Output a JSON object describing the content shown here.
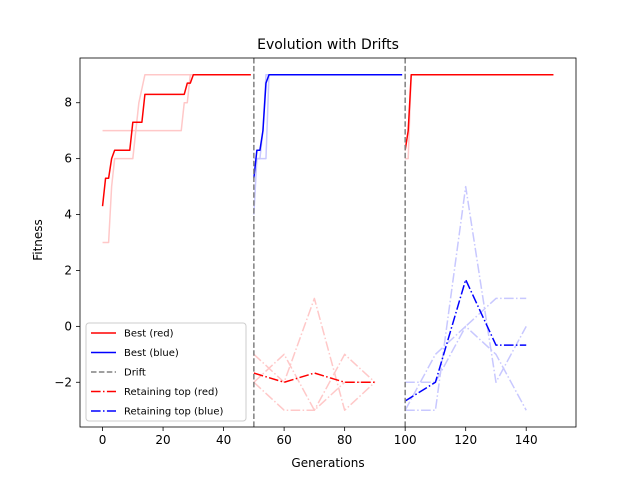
{
  "chart_data": {
    "type": "line",
    "title": "Evolution with Drifts",
    "xlabel": "Generations",
    "ylabel": "Fitness",
    "xlim": [
      -7.45,
      156.45
    ],
    "ylim": [
      -3.6,
      9.6
    ],
    "xticks": [
      0,
      20,
      40,
      60,
      80,
      100,
      120,
      140
    ],
    "yticks": [
      -2,
      0,
      2,
      4,
      6,
      8
    ],
    "grid": false,
    "legend_position": "lower-left",
    "colors": {
      "red": "#ff0000",
      "blue": "#0000ff",
      "drift": "#808080",
      "red_faint": "#ffc8c8",
      "blue_faint": "#c8c8ff"
    },
    "drifts": [
      50,
      100
    ],
    "series": [
      {
        "name": "Best (red)",
        "color": "#ff0000",
        "style": "solid",
        "width": 1.5,
        "points": [
          [
            0,
            4.3
          ],
          [
            1,
            5.3
          ],
          [
            2,
            5.3
          ],
          [
            3,
            6.0
          ],
          [
            4,
            6.3
          ],
          [
            9,
            6.3
          ],
          [
            10,
            7.3
          ],
          [
            13,
            7.3
          ],
          [
            14,
            8.3
          ],
          [
            27,
            8.3
          ],
          [
            28,
            8.7
          ],
          [
            29,
            8.7
          ],
          [
            30,
            9.0
          ],
          [
            49,
            9.0
          ]
        ]
      },
      {
        "name": "Best (blue)",
        "color": "#0000ff",
        "style": "solid",
        "width": 1.5,
        "points": [
          [
            50,
            5.3
          ],
          [
            51,
            6.3
          ],
          [
            52,
            6.3
          ],
          [
            53,
            7.0
          ],
          [
            54,
            8.7
          ],
          [
            55,
            9.0
          ],
          [
            99,
            9.0
          ]
        ]
      },
      {
        "name": "",
        "color": "#ff0000",
        "style": "solid",
        "width": 1.5,
        "points": [
          [
            100,
            6.3
          ],
          [
            101,
            7.0
          ],
          [
            102,
            9.0
          ],
          [
            149,
            9.0
          ]
        ]
      },
      {
        "name": "Drift",
        "color": "#808080",
        "style": "dashed",
        "width": 1.5,
        "points": []
      },
      {
        "name": "Retaining top (red)",
        "color": "#ff0000",
        "style": "dashdot",
        "width": 1.5,
        "points": [
          [
            50,
            -1.67
          ],
          [
            60,
            -2.0
          ],
          [
            70,
            -1.67
          ],
          [
            80,
            -2.0
          ],
          [
            90,
            -2.0
          ]
        ]
      },
      {
        "name": "Retaining top (blue)",
        "color": "#0000ff",
        "style": "dashdot",
        "width": 1.5,
        "points": [
          [
            100,
            -2.67
          ],
          [
            110,
            -2.0
          ],
          [
            120,
            1.67
          ],
          [
            130,
            -0.67
          ],
          [
            140,
            -0.67
          ]
        ]
      },
      {
        "name": "",
        "color": "#ffc8c8",
        "style": "solid",
        "width": 1.5,
        "points": [
          [
            0,
            3.0
          ],
          [
            2,
            3.0
          ],
          [
            3,
            5.0
          ],
          [
            4,
            6.0
          ],
          [
            10,
            6.0
          ],
          [
            11,
            7.0
          ],
          [
            12,
            8.0
          ],
          [
            14,
            9.0
          ],
          [
            49,
            9.0
          ]
        ]
      },
      {
        "name": "",
        "color": "#ffc8c8",
        "style": "solid",
        "width": 1.5,
        "points": [
          [
            0,
            7.0
          ],
          [
            26,
            7.0
          ],
          [
            27,
            8.0
          ],
          [
            28,
            8.0
          ],
          [
            29,
            9.0
          ],
          [
            49,
            9.0
          ]
        ]
      },
      {
        "name": "",
        "color": "#ffc8c8",
        "style": "solid",
        "width": 1.5,
        "points": [
          [
            100,
            6.0
          ],
          [
            101,
            6.0
          ],
          [
            102,
            9.0
          ],
          [
            149,
            9.0
          ]
        ]
      },
      {
        "name": "",
        "color": "#c8c8ff",
        "style": "solid",
        "width": 1.5,
        "points": [
          [
            50,
            4.0
          ],
          [
            51,
            6.0
          ],
          [
            54,
            6.0
          ],
          [
            55,
            9.0
          ],
          [
            99,
            9.0
          ]
        ]
      },
      {
        "name": "",
        "color": "#c8c8ff",
        "style": "solid",
        "width": 1.5,
        "points": [
          [
            50,
            6.0
          ],
          [
            52,
            6.0
          ],
          [
            53,
            7.0
          ],
          [
            54,
            9.0
          ],
          [
            99,
            9.0
          ]
        ]
      },
      {
        "name": "",
        "color": "#ffc8c8",
        "style": "dashdot",
        "width": 1.5,
        "points": [
          [
            50,
            -1.0
          ],
          [
            60,
            -2.0
          ],
          [
            70,
            1.0
          ],
          [
            80,
            -3.0
          ],
          [
            90,
            -2.0
          ]
        ]
      },
      {
        "name": "",
        "color": "#ffc8c8",
        "style": "dashdot",
        "width": 1.5,
        "points": [
          [
            50,
            -2.0
          ],
          [
            60,
            -3.0
          ],
          [
            70,
            -3.0
          ],
          [
            80,
            -1.0
          ],
          [
            90,
            -2.0
          ]
        ]
      },
      {
        "name": "",
        "color": "#ffc8c8",
        "style": "dashdot",
        "width": 1.5,
        "points": [
          [
            50,
            -2.0
          ],
          [
            60,
            -1.0
          ],
          [
            70,
            -3.0
          ],
          [
            80,
            -2.0
          ],
          [
            90,
            -2.0
          ]
        ]
      },
      {
        "name": "",
        "color": "#c8c8ff",
        "style": "dashdot",
        "width": 1.5,
        "points": [
          [
            100,
            -3.0
          ],
          [
            110,
            -3.0
          ],
          [
            120,
            5.0
          ],
          [
            130,
            -2.0
          ],
          [
            140,
            0.0
          ]
        ]
      },
      {
        "name": "",
        "color": "#c8c8ff",
        "style": "dashdot",
        "width": 1.5,
        "points": [
          [
            100,
            -2.0
          ],
          [
            110,
            -2.0
          ],
          [
            120,
            0.0
          ],
          [
            130,
            1.0
          ],
          [
            140,
            1.0
          ]
        ]
      },
      {
        "name": "",
        "color": "#c8c8ff",
        "style": "dashdot",
        "width": 1.5,
        "points": [
          [
            100,
            -3.0
          ],
          [
            110,
            -1.0
          ],
          [
            120,
            0.0
          ],
          [
            130,
            -1.0
          ],
          [
            140,
            -3.0
          ]
        ]
      }
    ],
    "legend": [
      {
        "label": "Best (red)",
        "color": "#ff0000",
        "style": "solid"
      },
      {
        "label": "Best (blue)",
        "color": "#0000ff",
        "style": "solid"
      },
      {
        "label": "Drift",
        "color": "#808080",
        "style": "dashed"
      },
      {
        "label": "Retaining top (red)",
        "color": "#ff0000",
        "style": "dashdot"
      },
      {
        "label": "Retaining top (blue)",
        "color": "#0000ff",
        "style": "dashdot"
      }
    ]
  }
}
